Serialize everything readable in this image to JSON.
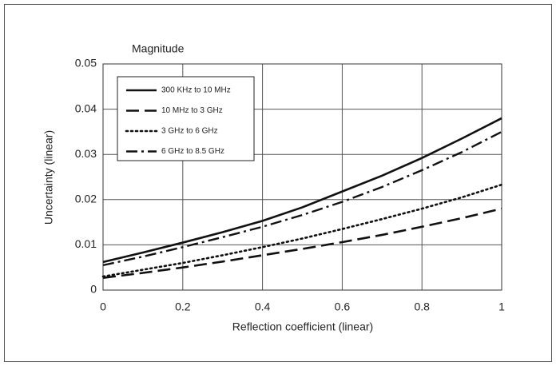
{
  "chart_data": {
    "type": "line",
    "title": "Magnitude",
    "x_label": "Reflection coefficient (linear)",
    "y_label": "Uncertainty (linear)",
    "x": [
      0,
      0.1,
      0.2,
      0.3,
      0.4,
      0.5,
      0.6,
      0.7,
      0.8,
      0.9,
      1
    ],
    "series": [
      {
        "name": "300 KHz to 10 MHz",
        "color": "#111111",
        "style": "solid",
        "values": [
          0.0062,
          0.0083,
          0.0105,
          0.0128,
          0.0153,
          0.0183,
          0.0218,
          0.0253,
          0.0292,
          0.0335,
          0.038
        ]
      },
      {
        "name": "10 MHz to 3 GHz",
        "color": "#111111",
        "style": "dashed",
        "values": [
          0.0027,
          0.0038,
          0.005,
          0.0063,
          0.0077,
          0.0091,
          0.0106,
          0.0122,
          0.014,
          0.0159,
          0.018
        ]
      },
      {
        "name": "3 GHz to 6 GHz",
        "color": "#111111",
        "style": "dotted",
        "values": [
          0.003,
          0.0045,
          0.006,
          0.0077,
          0.0095,
          0.0114,
          0.0135,
          0.0157,
          0.018,
          0.0205,
          0.0233
        ]
      },
      {
        "name": "6 GHz to 8.5 GHz",
        "color": "#111111",
        "style": "dashdot",
        "values": [
          0.0055,
          0.0074,
          0.0095,
          0.0117,
          0.014,
          0.0166,
          0.0195,
          0.0228,
          0.0265,
          0.0305,
          0.035
        ]
      }
    ],
    "xlim": [
      0,
      1
    ],
    "xticks": [
      0,
      0.2,
      0.4,
      0.6,
      0.8,
      1
    ],
    "ylim": [
      0,
      0.05
    ],
    "yticks": [
      0,
      0.01,
      0.02,
      0.03,
      0.04,
      0.05
    ],
    "grid": true,
    "legend": "upper left"
  }
}
